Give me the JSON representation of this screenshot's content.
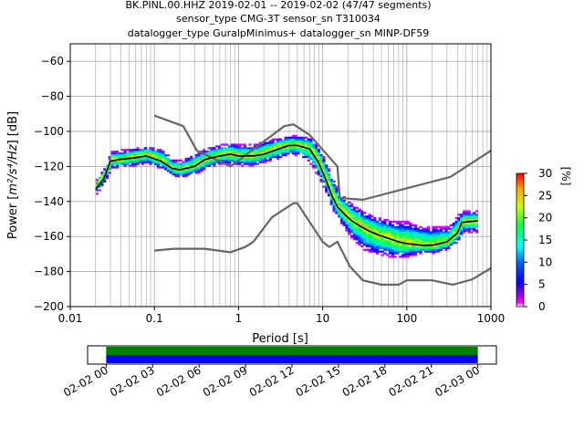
{
  "chart_data": [
    {
      "type": "heatmap",
      "title_lines": [
        "BK.PINL.00.HHZ   2019-02-01 -- 2019-02-02  (47/47 segments)",
        "sensor_type CMG-3T sensor_sn T310034",
        "datalogger_type GuralpMinimus+ datalogger_sn MINP-DF59"
      ],
      "xlabel": "Period [s]",
      "ylabel_main": "Power [",
      "ylabel_expr": "m²/s⁴/Hz",
      "ylabel_tail": "] [dB]",
      "xscale": "log",
      "xlim": [
        0.01,
        1000
      ],
      "ylim": [
        -200,
        -50
      ],
      "x_ticks": [
        0.01,
        0.1,
        1,
        10,
        100,
        1000
      ],
      "x_tick_labels": [
        "0.01",
        "0.1",
        "1",
        "10",
        "100",
        "1000"
      ],
      "y_ticks": [
        -200,
        -180,
        -160,
        -140,
        -120,
        -100,
        -80,
        -60
      ],
      "y_tick_labels": [
        "−200",
        "−180",
        "−160",
        "−140",
        "−120",
        "−100",
        "−80",
        "−60"
      ],
      "grid": true,
      "colorbar": {
        "label": "[%]",
        "range": [
          0,
          30
        ],
        "ticks": [
          0,
          5,
          10,
          15,
          20,
          25,
          30
        ],
        "tick_labels": [
          "0",
          "5",
          "10",
          "15",
          "20",
          "25",
          "30"
        ]
      },
      "noise_models": [
        {
          "points": [
            [
              0.1,
              -91
            ],
            [
              0.22,
              -97
            ],
            [
              0.32,
              -111
            ],
            [
              0.8,
              -120
            ],
            [
              3.5,
              -97
            ],
            [
              4.5,
              -96
            ],
            [
              7,
              -102
            ],
            [
              15,
              -120
            ],
            [
              16,
              -138
            ],
            [
              30,
              -139
            ],
            [
              330,
              -126
            ],
            [
              1000,
              -111
            ]
          ]
        },
        {
          "points": [
            [
              0.1,
              -168
            ],
            [
              0.17,
              -167
            ],
            [
              0.4,
              -167
            ],
            [
              0.8,
              -169
            ],
            [
              1.2,
              -166
            ],
            [
              1.5,
              -163
            ],
            [
              2.5,
              -149
            ],
            [
              4.5,
              -141
            ],
            [
              5,
              -141
            ],
            [
              10,
              -163
            ],
            [
              12,
              -166
            ],
            [
              15,
              -163
            ],
            [
              21,
              -177
            ],
            [
              30,
              -185
            ],
            [
              50,
              -187.5
            ],
            [
              80,
              -187.5
            ],
            [
              100,
              -185
            ],
            [
              200,
              -185
            ],
            [
              350,
              -187.5
            ],
            [
              600,
              -184.5
            ],
            [
              1000,
              -178
            ]
          ]
        }
      ],
      "mode_curve": [
        [
          0.02,
          -133
        ],
        [
          0.025,
          -127
        ],
        [
          0.03,
          -117
        ],
        [
          0.04,
          -116
        ],
        [
          0.06,
          -115
        ],
        [
          0.08,
          -114
        ],
        [
          0.12,
          -117
        ],
        [
          0.16,
          -121
        ],
        [
          0.2,
          -122
        ],
        [
          0.3,
          -120
        ],
        [
          0.4,
          -116
        ],
        [
          0.6,
          -114
        ],
        [
          0.8,
          -113
        ],
        [
          1.0,
          -114
        ],
        [
          1.5,
          -114
        ],
        [
          2.0,
          -113
        ],
        [
          3.0,
          -110
        ],
        [
          4.0,
          -108
        ],
        [
          5.0,
          -108
        ],
        [
          7.0,
          -110
        ],
        [
          9.0,
          -118
        ],
        [
          11,
          -128
        ],
        [
          13,
          -137
        ],
        [
          15,
          -143
        ],
        [
          18,
          -147
        ],
        [
          22,
          -151
        ],
        [
          30,
          -155
        ],
        [
          40,
          -158
        ],
        [
          60,
          -161
        ],
        [
          80,
          -163
        ],
        [
          100,
          -164
        ],
        [
          150,
          -165
        ],
        [
          200,
          -165
        ],
        [
          300,
          -163
        ],
        [
          400,
          -158
        ],
        [
          450,
          -152
        ],
        [
          700,
          -151
        ]
      ],
      "psd_bands": [
        [
          0.02,
          -130,
          -128,
          -136
        ],
        [
          0.025,
          -124,
          -121,
          -130
        ],
        [
          0.03,
          -116,
          -112,
          -122
        ],
        [
          0.04,
          -116,
          -111,
          -121
        ],
        [
          0.06,
          -114,
          -110,
          -120
        ],
        [
          0.08,
          -113,
          -109,
          -119
        ],
        [
          0.12,
          -116,
          -111,
          -122
        ],
        [
          0.16,
          -121,
          -116,
          -126
        ],
        [
          0.2,
          -122,
          -117,
          -127
        ],
        [
          0.3,
          -119,
          -113,
          -125
        ],
        [
          0.4,
          -116,
          -110,
          -122
        ],
        [
          0.6,
          -113,
          -108,
          -119
        ],
        [
          0.8,
          -113,
          -107,
          -119
        ],
        [
          1.0,
          -114,
          -108,
          -120
        ],
        [
          1.5,
          -114,
          -108,
          -120
        ],
        [
          2.0,
          -112,
          -106,
          -118
        ],
        [
          3.0,
          -109,
          -104,
          -116
        ],
        [
          4.0,
          -108,
          -103,
          -114
        ],
        [
          5.0,
          -108,
          -103,
          -114
        ],
        [
          7.0,
          -110,
          -104,
          -119
        ],
        [
          9.0,
          -118,
          -110,
          -128
        ],
        [
          11,
          -128,
          -120,
          -137
        ],
        [
          13,
          -137,
          -128,
          -146
        ],
        [
          15,
          -143,
          -135,
          -151
        ],
        [
          18,
          -147,
          -138,
          -156
        ],
        [
          22,
          -151,
          -142,
          -162
        ],
        [
          30,
          -155,
          -146,
          -168
        ],
        [
          40,
          -158,
          -149,
          -171
        ],
        [
          60,
          -161,
          -151,
          -172
        ],
        [
          80,
          -163,
          -152,
          -173
        ],
        [
          100,
          -164,
          -152,
          -172
        ],
        [
          150,
          -165,
          -155,
          -170
        ],
        [
          200,
          -165,
          -155,
          -170
        ],
        [
          300,
          -163,
          -155,
          -168
        ],
        [
          400,
          -157,
          -148,
          -163
        ],
        [
          450,
          -152,
          -146,
          -158
        ],
        [
          700,
          -151,
          -146,
          -158
        ]
      ]
    },
    {
      "type": "timeline",
      "x_tick_labels": [
        "02-02 00",
        "02-02 03",
        "02-02 06",
        "02-02 09",
        "02-02 12",
        "02-02 15",
        "02-02 18",
        "02-02 21",
        "02-03 00"
      ],
      "bars": [
        {
          "color": "#008000",
          "start_hour": 0,
          "end_hour": 24
        },
        {
          "color": "#0000ff",
          "start_hour": 0,
          "end_hour": 24
        }
      ],
      "axis_range_hours": [
        -1.2,
        25.2
      ]
    }
  ]
}
